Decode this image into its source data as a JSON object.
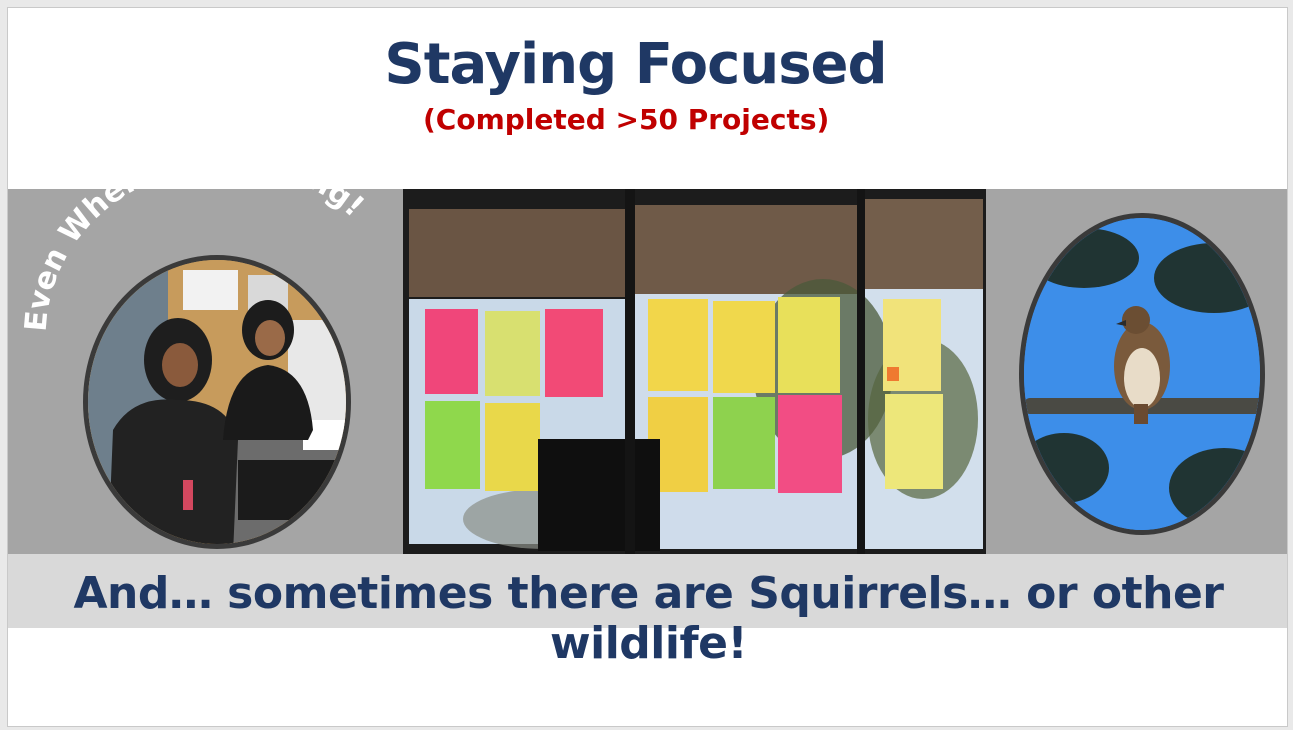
{
  "slide": {
    "title": "Staying Focused",
    "subtitle": "(Completed >50 Projects)",
    "left_arc_text": "Even When its Freezing!",
    "caption": "And… sometimes there are Squirrels… or other wildlife!"
  },
  "colors": {
    "title": "#1f3864",
    "subtitle": "#c00000",
    "band": "#a5a5a5",
    "caption_bar": "#d9d9d9"
  },
  "photos": [
    {
      "icon": "people-in-hoodies-photo"
    },
    {
      "icon": "office-window-sticky-notes-photo"
    },
    {
      "icon": "hawk-on-branch-photo"
    }
  ]
}
